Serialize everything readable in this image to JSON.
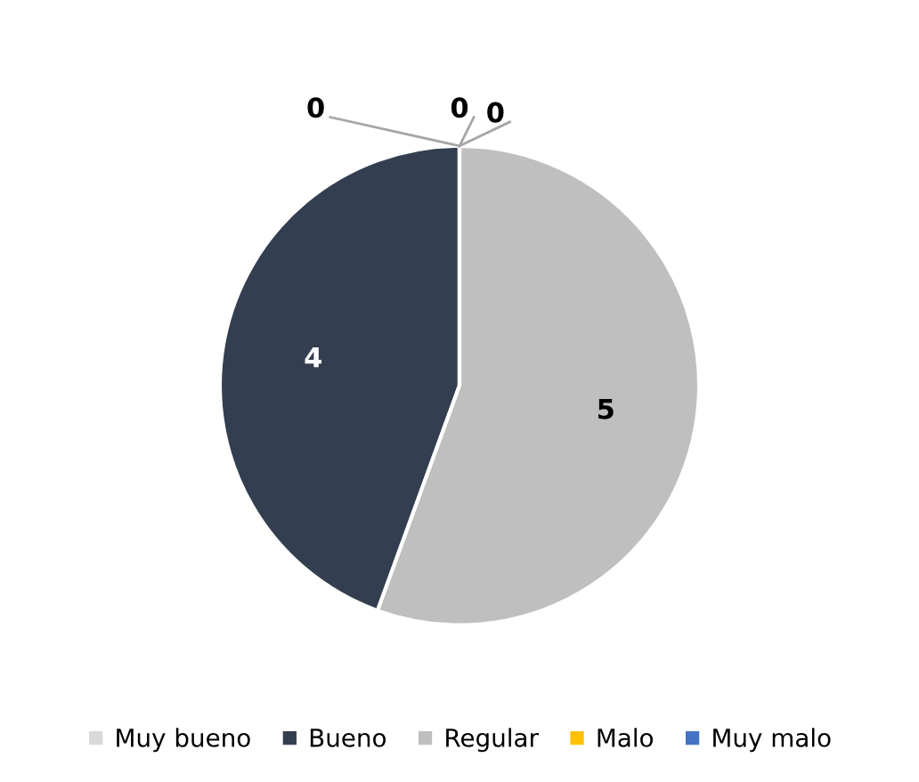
{
  "chart_data": {
    "type": "pie",
    "categories": [
      "Muy bueno",
      "Bueno",
      "Regular",
      "Malo",
      "Muy malo"
    ],
    "values": [
      0,
      4,
      5,
      0,
      0
    ],
    "colors": [
      "#d9d9d9",
      "#333f50",
      "#bfbfbf",
      "#ffc000",
      "#4472c4"
    ],
    "value_labels": [
      "0",
      "4",
      "5",
      "0",
      "0"
    ],
    "legend": "bottom"
  }
}
